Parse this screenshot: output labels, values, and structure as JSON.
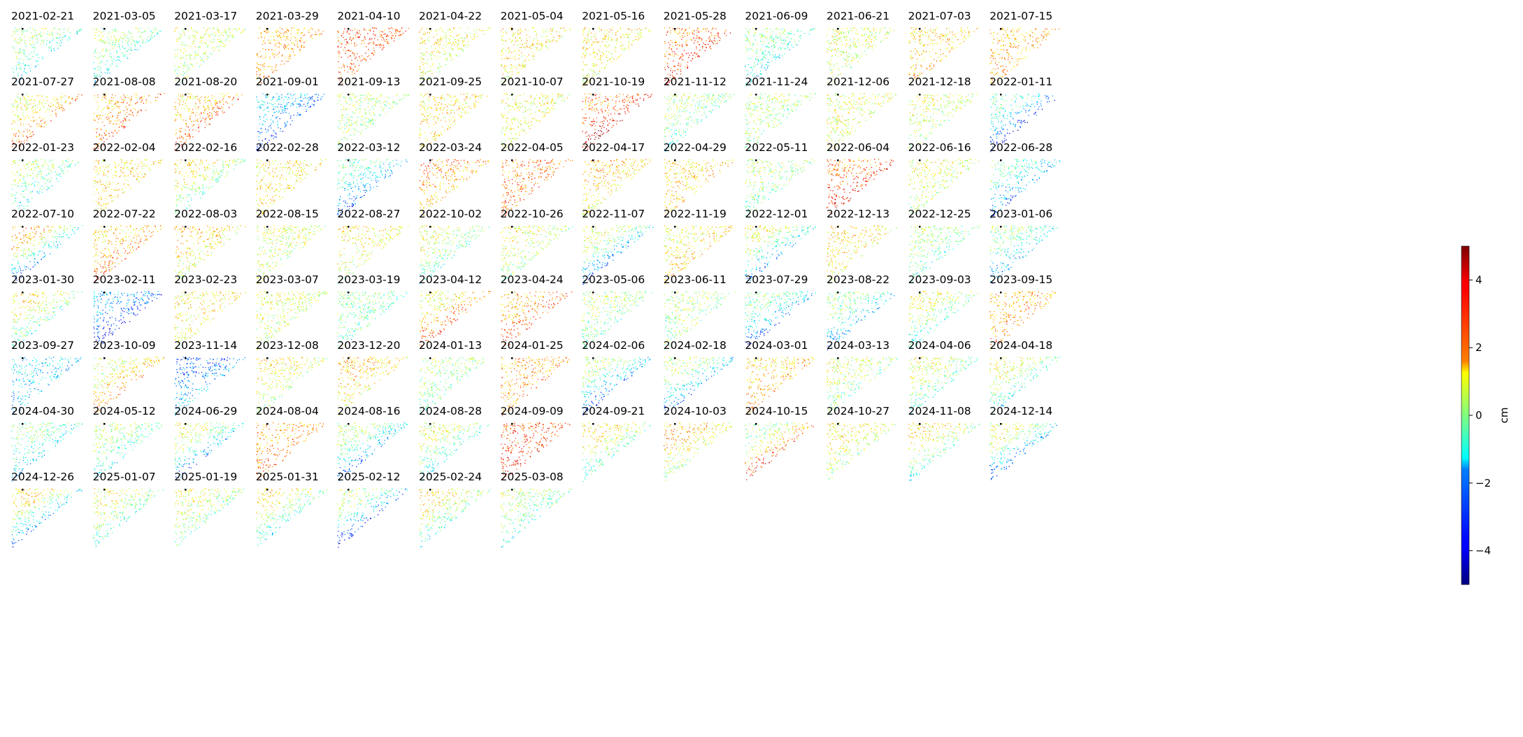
{
  "chart_data": {
    "type": "heatmap",
    "description_kind": "small-multiples grid of displacement maps",
    "colormap": "jet",
    "grid": false,
    "axes_visible": false,
    "columns": 13,
    "panels": [
      "2021-02-21",
      "2021-03-05",
      "2021-03-17",
      "2021-03-29",
      "2021-04-10",
      "2021-04-22",
      "2021-05-04",
      "2021-05-16",
      "2021-05-28",
      "2021-06-09",
      "2021-06-21",
      "2021-07-03",
      "2021-07-15",
      "2021-07-27",
      "2021-08-08",
      "2021-08-20",
      "2021-09-01",
      "2021-09-13",
      "2021-09-25",
      "2021-10-07",
      "2021-10-19",
      "2021-11-12",
      "2021-11-24",
      "2021-12-06",
      "2021-12-18",
      "2022-01-11",
      "2022-01-23",
      "2022-02-04",
      "2022-02-16",
      "2022-02-28",
      "2022-03-12",
      "2022-03-24",
      "2022-04-05",
      "2022-04-17",
      "2022-04-29",
      "2022-05-11",
      "2022-06-04",
      "2022-06-16",
      "2022-06-28",
      "2022-07-10",
      "2022-07-22",
      "2022-08-03",
      "2022-08-15",
      "2022-08-27",
      "2022-10-02",
      "2022-10-26",
      "2022-11-07",
      "2022-11-19",
      "2022-12-01",
      "2022-12-13",
      "2022-12-25",
      "2023-01-06",
      "2023-01-30",
      "2023-02-11",
      "2023-02-23",
      "2023-03-07",
      "2023-03-19",
      "2023-04-12",
      "2023-04-24",
      "2023-05-06",
      "2023-06-11",
      "2023-07-29",
      "2023-08-22",
      "2023-09-03",
      "2023-09-15",
      "2023-09-27",
      "2023-10-09",
      "2023-11-14",
      "2023-12-08",
      "2023-12-20",
      "2024-01-13",
      "2024-01-25",
      "2024-02-06",
      "2024-02-18",
      "2024-03-01",
      "2024-03-13",
      "2024-04-06",
      "2024-04-18",
      "2024-04-30",
      "2024-05-12",
      "2024-06-29",
      "2024-08-04",
      "2024-08-16",
      "2024-08-28",
      "2024-09-09",
      "2024-09-21",
      "2024-10-03",
      "2024-10-15",
      "2024-10-27",
      "2024-11-08",
      "2024-12-14",
      "2024-12-26",
      "2025-01-07",
      "2025-01-19",
      "2025-01-31",
      "2025-02-12",
      "2025-02-24",
      "2025-03-08"
    ],
    "panel_levels": [
      [
        0.5,
        -2.0
      ],
      [
        0.5,
        -1.5
      ],
      [
        1.0,
        0.0
      ],
      [
        2.0,
        2.5
      ],
      [
        3.0,
        3.0
      ],
      [
        1.5,
        0.5
      ],
      [
        1.5,
        1.0
      ],
      [
        1.5,
        1.0
      ],
      [
        2.5,
        3.5
      ],
      [
        0.0,
        -1.5
      ],
      [
        1.0,
        0.5
      ],
      [
        1.5,
        2.0
      ],
      [
        2.0,
        2.0
      ],
      [
        1.0,
        3.0
      ],
      [
        2.0,
        3.0
      ],
      [
        1.5,
        3.5
      ],
      [
        -1.5,
        -3.5
      ],
      [
        0.5,
        0.0
      ],
      [
        1.5,
        1.5
      ],
      [
        1.0,
        1.0
      ],
      [
        2.5,
        4.5
      ],
      [
        0.5,
        -1.0
      ],
      [
        0.5,
        0.0
      ],
      [
        1.0,
        1.0
      ],
      [
        1.0,
        0.0
      ],
      [
        -0.5,
        -4.0
      ],
      [
        0.5,
        -1.5
      ],
      [
        1.5,
        1.5
      ],
      [
        1.5,
        -1.0
      ],
      [
        1.5,
        1.5
      ],
      [
        -0.5,
        -3.0
      ],
      [
        2.5,
        1.5
      ],
      [
        2.5,
        3.0
      ],
      [
        2.0,
        1.0
      ],
      [
        1.5,
        2.0
      ],
      [
        0.5,
        -0.5
      ],
      [
        2.5,
        4.0
      ],
      [
        1.0,
        0.5
      ],
      [
        -0.5,
        -3.0
      ],
      [
        2.0,
        -3.5
      ],
      [
        1.5,
        3.0
      ],
      [
        2.0,
        0.5
      ],
      [
        1.0,
        0.5
      ],
      [
        1.5,
        0.5
      ],
      [
        1.0,
        -1.0
      ],
      [
        1.0,
        0.0
      ],
      [
        1.0,
        -3.0
      ],
      [
        1.0,
        2.0
      ],
      [
        1.0,
        -3.0
      ],
      [
        1.5,
        1.0
      ],
      [
        0.5,
        -1.0
      ],
      [
        0.0,
        -2.5
      ],
      [
        1.5,
        -1.0
      ],
      [
        -2.0,
        -4.0
      ],
      [
        1.5,
        1.0
      ],
      [
        1.0,
        0.5
      ],
      [
        0.0,
        -0.5
      ],
      [
        1.0,
        3.5
      ],
      [
        2.0,
        3.5
      ],
      [
        0.5,
        -0.5
      ],
      [
        0.5,
        0.0
      ],
      [
        0.0,
        -3.5
      ],
      [
        0.0,
        -2.5
      ],
      [
        1.0,
        -1.0
      ],
      [
        2.0,
        2.5
      ],
      [
        -1.5,
        -2.0
      ],
      [
        0.5,
        3.0
      ],
      [
        -3.0,
        -1.5
      ],
      [
        1.5,
        0.0
      ],
      [
        2.0,
        1.0
      ],
      [
        0.5,
        -0.5
      ],
      [
        2.0,
        2.5
      ],
      [
        0.5,
        -3.5
      ],
      [
        0.5,
        -3.0
      ],
      [
        1.5,
        2.5
      ],
      [
        1.0,
        -0.5
      ],
      [
        1.0,
        -1.0
      ],
      [
        1.0,
        -1.5
      ],
      [
        0.0,
        -2.0
      ],
      [
        0.5,
        -1.5
      ],
      [
        1.0,
        -3.0
      ],
      [
        2.0,
        3.0
      ],
      [
        0.5,
        -3.0
      ],
      [
        1.0,
        -1.5
      ],
      [
        3.0,
        3.5
      ],
      [
        1.5,
        -1.0
      ],
      [
        2.0,
        0.0
      ],
      [
        0.0,
        4.0
      ],
      [
        1.5,
        0.0
      ],
      [
        1.5,
        -1.0
      ],
      [
        1.0,
        -3.5
      ],
      [
        1.5,
        -3.0
      ],
      [
        1.0,
        -1.0
      ],
      [
        1.0,
        -0.5
      ],
      [
        1.5,
        -1.5
      ],
      [
        0.5,
        -4.0
      ],
      [
        1.5,
        -1.0
      ],
      [
        0.5,
        -1.0
      ]
    ],
    "panel_levels_meaning": "approximate dominant displacement (cm) of [upper area, lower coastal band] in each map",
    "colorbar": {
      "range": [
        -5,
        5
      ],
      "ticks": [
        4,
        2,
        0,
        -2,
        -4
      ],
      "tick_labels": [
        "4",
        "2",
        "0",
        "−2",
        "−4"
      ],
      "label": "cm"
    }
  }
}
